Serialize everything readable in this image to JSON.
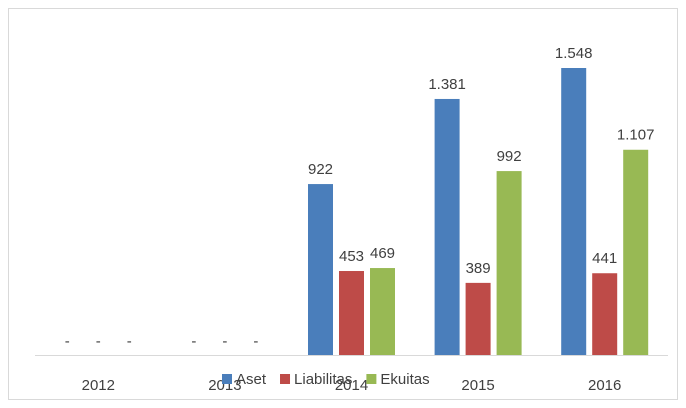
{
  "chart_data": {
    "type": "bar",
    "categories": [
      "2012",
      "2013",
      "2014",
      "2015",
      "2016"
    ],
    "series": [
      {
        "name": "Aset",
        "color": "#4a7ebb",
        "values": [
          null,
          null,
          922,
          1381,
          1548
        ],
        "value_labels": [
          "-",
          "-",
          "922",
          "1.381",
          "1.548"
        ]
      },
      {
        "name": "Liabilitas",
        "color": "#be4b48",
        "values": [
          null,
          null,
          453,
          389,
          441
        ],
        "value_labels": [
          "-",
          "-",
          "453",
          "389",
          "441"
        ]
      },
      {
        "name": "Ekuitas",
        "color": "#98b954",
        "values": [
          null,
          null,
          469,
          992,
          1107
        ],
        "value_labels": [
          "-",
          "-",
          "469",
          "992",
          "1.107"
        ]
      }
    ],
    "legend": "bottom"
  }
}
